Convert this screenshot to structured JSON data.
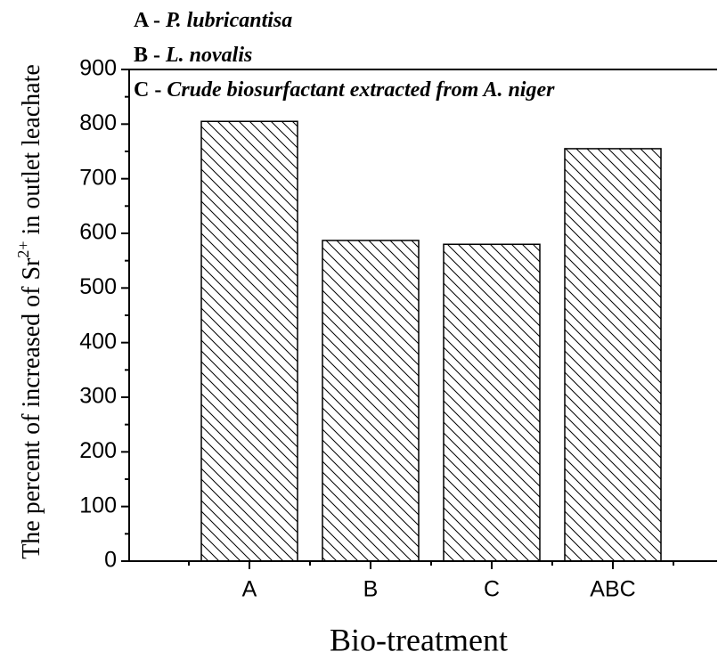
{
  "chart_data": {
    "type": "bar",
    "xlabel": "Bio-treatment",
    "ylabel": {
      "text": "The  percent of increased of Sr",
      "superscript": "2+",
      "rest": " in outlet leachate"
    },
    "legend_notes": [
      {
        "key": "A - ",
        "name": "P. lubricantisa"
      },
      {
        "key": "B - ",
        "name": "L. novalis"
      },
      {
        "key": "C - ",
        "name": "Crude biosurfactant extracted from A.  niger"
      }
    ],
    "categories": [
      "A",
      "B",
      "C",
      "ABC"
    ],
    "values": [
      805,
      587,
      580,
      755
    ],
    "color": "#000000",
    "hatch": true,
    "ylim": [
      0,
      900
    ],
    "yticks": [
      0,
      100,
      200,
      300,
      400,
      500,
      600,
      700,
      800,
      900
    ]
  }
}
